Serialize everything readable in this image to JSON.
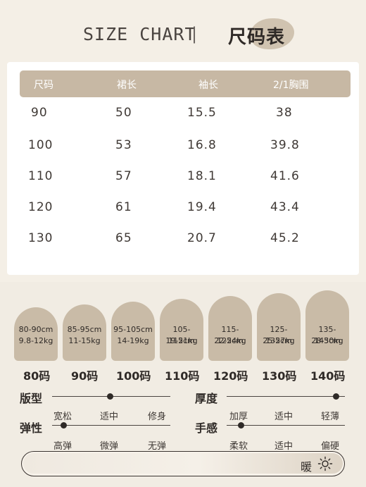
{
  "header": {
    "title_en": "SIZE CHART",
    "separator": "|",
    "title_cn": "尺码表"
  },
  "table": {
    "columns": [
      "尺码",
      "裙长",
      "袖长",
      "2/1胸围"
    ],
    "rows": [
      [
        "90",
        "50",
        "15.5",
        "38"
      ],
      [
        "100",
        "53",
        "16.8",
        "39.8"
      ],
      [
        "110",
        "57",
        "18.1",
        "41.6"
      ],
      [
        "120",
        "61",
        "19.4",
        "43.4"
      ],
      [
        "130",
        "65",
        "20.7",
        "45.2"
      ]
    ]
  },
  "size_guide": [
    {
      "height": "80-90cm",
      "weight": "9.8-12kg",
      "size": "80码"
    },
    {
      "height": "85-95cm",
      "weight": "11-15kg",
      "size": "90码"
    },
    {
      "height": "95-105cm",
      "weight": "14-19kg",
      "size": "100码"
    },
    {
      "height": "105-115cm",
      "weight": "19-21kg",
      "size": "110码"
    },
    {
      "height": "115-125cm",
      "weight": "22-24kg",
      "size": "120码"
    },
    {
      "height": "125-135cm",
      "weight": "25-27kg",
      "size": "130码"
    },
    {
      "height": "135-145cm",
      "weight": "28-30kg",
      "size": "140码"
    }
  ],
  "attributes": {
    "fit": {
      "title": "版型",
      "options": [
        "宽松",
        "适中",
        "修身"
      ]
    },
    "elasticity": {
      "title": "弹性",
      "options": [
        "高弹",
        "微弹",
        "无弹"
      ]
    },
    "thickness": {
      "title": "厚度",
      "options": [
        "加厚",
        "适中",
        "轻薄"
      ]
    },
    "feel": {
      "title": "手感",
      "options": [
        "柔软",
        "适中",
        "偏硬"
      ]
    }
  },
  "warmth": {
    "label": "暖",
    "icon": "sun-icon"
  },
  "colors": {
    "accent": "#c7b8a4",
    "background": "#f4efe6",
    "arch": "#c9bba7"
  }
}
